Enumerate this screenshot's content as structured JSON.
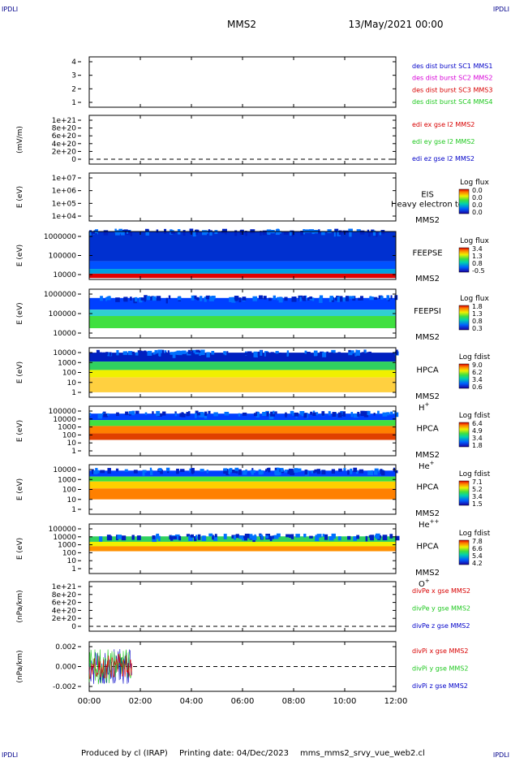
{
  "corner_labels": [
    "IPDLI",
    "IPDLI",
    "IPDLI",
    "IPDLI"
  ],
  "header": {
    "spacecraft": "MMS2",
    "date": "13/May/2021 00:00"
  },
  "footer": {
    "produced_by": "Produced by cl (IRAP)",
    "printing_date": "Printing date: 04/Dec/2023",
    "filename": "mms_mms2_srvy_vue_web2.cl"
  },
  "colors": {
    "blue": "#0000c8",
    "magenta": "#d800d8",
    "red": "#d80000",
    "green": "#1ec81e",
    "dark_blue": "#00008b"
  },
  "chart_data": [
    {
      "type": "line",
      "title": "",
      "ylabel": "",
      "yticks": [
        "4",
        "3",
        "2",
        "1"
      ],
      "legend": [
        {
          "text": "des dist burst SC1 MMS1",
          "color": "#0000c8"
        },
        {
          "text": "des dist burst SC2 MMS2",
          "color": "#d800d8"
        },
        {
          "text": "des dist burst SC3 MMS3",
          "color": "#d80000"
        },
        {
          "text": "des dist burst SC4 MMS4",
          "color": "#1ec81e"
        }
      ],
      "series": []
    },
    {
      "type": "line",
      "ylabel": "(mV/m)",
      "yticks": [
        "1e+21",
        "8e+20",
        "6e+20",
        "4e+20",
        "2e+20",
        "0"
      ],
      "zero_line": true,
      "legend": [
        {
          "text": "edi ex gse l2 MMS2",
          "color": "#d80000"
        },
        {
          "text": "edi ey gse l2 MMS2",
          "color": "#1ec81e"
        },
        {
          "text": "edi ez gse l2 MMS2",
          "color": "#0000c8"
        }
      ],
      "series": []
    },
    {
      "type": "heatmap",
      "ylabel": "E (eV)",
      "yticks": [
        "1e+07",
        "1e+06",
        "1e+05",
        "1e+04"
      ],
      "instrument": [
        "EIS",
        "MMS2"
      ],
      "overlay_text": "Heavy electron top",
      "colorbar": {
        "title": "Log flux",
        "ticks": [
          "0.0",
          "0.0",
          "0.0",
          "0.0"
        ]
      },
      "data_extent": null
    },
    {
      "type": "heatmap",
      "ylabel": "E (eV)",
      "yticks": [
        "1000000",
        "100000",
        "10000"
      ],
      "instrument": [
        "FEEPSE",
        "MMS2"
      ],
      "colorbar": {
        "title": "Log flux",
        "ticks": [
          "3.4",
          "1.3",
          "0.8",
          "-0.5"
        ]
      },
      "data_extent": [
        "00:00",
        "12:00"
      ]
    },
    {
      "type": "heatmap",
      "ylabel": "E (eV)",
      "yticks": [
        "1000000",
        "100000",
        "10000"
      ],
      "instrument": [
        "FEEPSI",
        "MMS2"
      ],
      "colorbar": {
        "title": "Log flux",
        "ticks": [
          "1.8",
          "1.3",
          "0.8",
          "0.3"
        ]
      },
      "data_extent": [
        "00:00",
        "12:00"
      ]
    },
    {
      "type": "heatmap",
      "ylabel": "E (eV)",
      "yticks": [
        "10000",
        "1000",
        "100",
        "10",
        "1"
      ],
      "instrument": [
        "HPCA",
        "MMS2"
      ],
      "species": "H",
      "species_sup": "+",
      "colorbar": {
        "title": "Log fdist",
        "ticks": [
          "9.0",
          "6.2",
          "3.4",
          "0.6"
        ]
      },
      "data_extent": [
        "00:00",
        "12:00"
      ]
    },
    {
      "type": "heatmap",
      "ylabel": "E (eV)",
      "yticks": [
        "100000",
        "10000",
        "1000",
        "100",
        "10",
        "1"
      ],
      "instrument": [
        "HPCA",
        "MMS2"
      ],
      "species": "He",
      "species_sup": "+",
      "colorbar": {
        "title": "Log fdist",
        "ticks": [
          "6.4",
          "4.9",
          "3.4",
          "1.8"
        ]
      },
      "data_extent": [
        "00:00",
        "12:00"
      ]
    },
    {
      "type": "heatmap",
      "ylabel": "E (eV)",
      "yticks": [
        "10000",
        "1000",
        "100",
        "10",
        "1"
      ],
      "instrument": [
        "HPCA",
        "MMS2"
      ],
      "species": "He",
      "species_sup": "++",
      "colorbar": {
        "title": "Log fdist",
        "ticks": [
          "7.1",
          "5.2",
          "3.4",
          "1.5"
        ]
      },
      "data_extent": [
        "00:00",
        "12:00"
      ]
    },
    {
      "type": "heatmap",
      "ylabel": "E (eV)",
      "yticks": [
        "100000",
        "10000",
        "1000",
        "100",
        "10",
        "1"
      ],
      "instrument": [
        "HPCA",
        "MMS2"
      ],
      "species": "O",
      "species_sup": "+",
      "colorbar": {
        "title": "Log fdist",
        "ticks": [
          "7.8",
          "6.6",
          "5.4",
          "4.2"
        ]
      },
      "data_extent": [
        "00:00",
        "12:00"
      ]
    },
    {
      "type": "line",
      "ylabel": "(nPa/km)",
      "yticks": [
        "1e+21",
        "8e+20",
        "6e+20",
        "4e+20",
        "2e+20",
        "0"
      ],
      "zero_line": true,
      "legend": [
        {
          "text": "divPe x gse MMS2",
          "color": "#d80000"
        },
        {
          "text": "divPe y gse MMS2",
          "color": "#1ec81e"
        },
        {
          "text": "divPe z gse MMS2",
          "color": "#0000c8"
        }
      ],
      "series": []
    },
    {
      "type": "line",
      "ylabel": "(nPa/km)",
      "yticks": [
        "0.002",
        "0.000",
        "-0.002"
      ],
      "ylim": [
        -0.0035,
        0.0035
      ],
      "zero_line": true,
      "legend": [
        {
          "text": "divPi x gse MMS2",
          "color": "#d80000"
        },
        {
          "text": "divPi y gse MMS2",
          "color": "#1ec81e"
        },
        {
          "text": "divPi z gse MMS2",
          "color": "#0000c8"
        }
      ],
      "data_extent": [
        "00:00",
        "01:40"
      ],
      "amplitude": 0.0025
    }
  ],
  "xaxis": {
    "ticks": [
      "00:00",
      "02:00",
      "04:00",
      "06:00",
      "08:00",
      "10:00",
      "12:00"
    ]
  }
}
